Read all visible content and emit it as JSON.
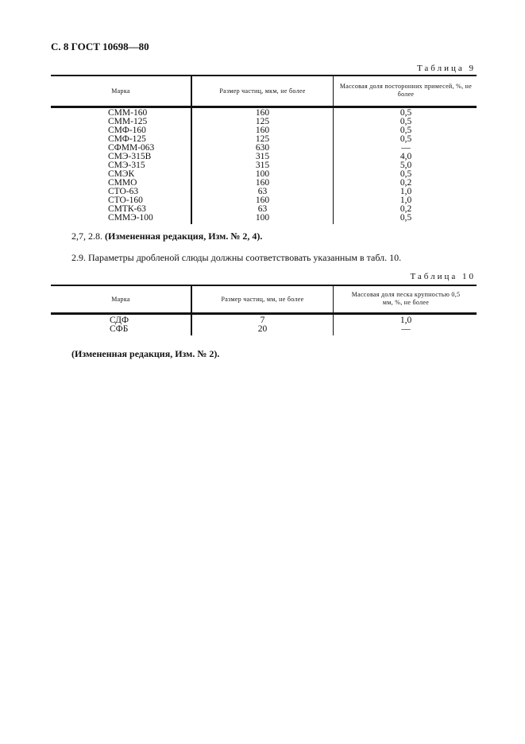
{
  "header": "С. 8 ГОСТ 10698—80",
  "table9": {
    "caption": "Таблица 9",
    "headers": [
      "Марка",
      "Размер частиц, мкм, не более",
      "Массовая доля посторонних примесей, %, не более"
    ],
    "rows": [
      [
        "СММ-160",
        "160",
        "0,5"
      ],
      [
        "СММ-125",
        "125",
        "0,5"
      ],
      [
        "СМФ-160",
        "160",
        "0,5"
      ],
      [
        "СМФ-125",
        "125",
        "0,5"
      ],
      [
        "СФММ-063",
        "630",
        "—"
      ],
      [
        "СМЭ-315В",
        "315",
        "4,0"
      ],
      [
        "СМЭ-315",
        "315",
        "5,0"
      ],
      [
        "СМЭК",
        "100",
        "0,5"
      ],
      [
        "СММО",
        "160",
        "0,2"
      ],
      [
        "СТО-63",
        "63",
        "1,0"
      ],
      [
        "СТО-160",
        "160",
        "1,0"
      ],
      [
        "СМТК-63",
        "63",
        "0,2"
      ],
      [
        "СММЭ-100",
        "100",
        "0,5"
      ]
    ]
  },
  "note1": {
    "prefix": "2,7, 2.8.",
    "bold": "(Измененная редакция, Изм. № 2, 4)."
  },
  "para29": "2.9. Параметры дробленой слюды должны соответствовать указанным в табл. 10.",
  "table10": {
    "caption": "Таблица 10",
    "headers": [
      "Марка",
      "Размер частиц, мм, не более",
      "Массовая доля песка крупностью 0,5 мм, %, не более"
    ],
    "rows": [
      [
        "СДФ",
        "7",
        "1,0"
      ],
      [
        "СФБ",
        "20",
        "—"
      ]
    ]
  },
  "note2": "(Измененная редакция, Изм. № 2)."
}
